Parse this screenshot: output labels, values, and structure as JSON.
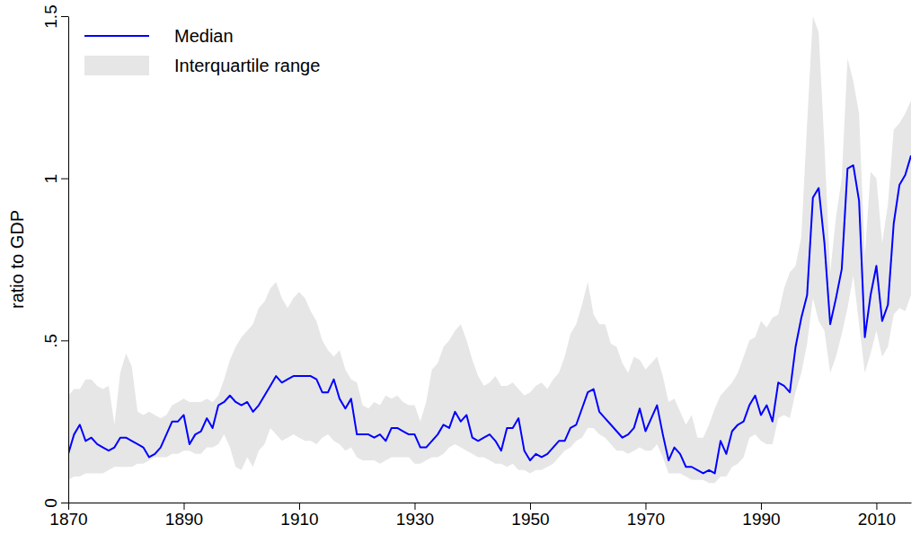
{
  "chart_data": {
    "type": "line",
    "y_label": "ratio to GDP",
    "x": [
      1870,
      1871,
      1872,
      1873,
      1874,
      1875,
      1876,
      1877,
      1878,
      1879,
      1880,
      1881,
      1882,
      1883,
      1884,
      1885,
      1886,
      1887,
      1888,
      1889,
      1890,
      1891,
      1892,
      1893,
      1894,
      1895,
      1896,
      1897,
      1898,
      1899,
      1900,
      1901,
      1902,
      1903,
      1904,
      1905,
      1906,
      1907,
      1908,
      1909,
      1910,
      1911,
      1912,
      1913,
      1914,
      1915,
      1916,
      1917,
      1918,
      1919,
      1920,
      1921,
      1922,
      1923,
      1924,
      1925,
      1926,
      1927,
      1928,
      1929,
      1930,
      1931,
      1932,
      1933,
      1934,
      1935,
      1936,
      1937,
      1938,
      1939,
      1940,
      1941,
      1942,
      1943,
      1944,
      1945,
      1946,
      1947,
      1948,
      1949,
      1950,
      1951,
      1952,
      1953,
      1954,
      1955,
      1956,
      1957,
      1958,
      1959,
      1960,
      1961,
      1962,
      1963,
      1964,
      1965,
      1966,
      1967,
      1968,
      1969,
      1970,
      1971,
      1972,
      1973,
      1974,
      1975,
      1976,
      1977,
      1978,
      1979,
      1980,
      1981,
      1982,
      1983,
      1984,
      1985,
      1986,
      1987,
      1988,
      1989,
      1990,
      1991,
      1992,
      1993,
      1994,
      1995,
      1996,
      1997,
      1998,
      1999,
      2000,
      2001,
      2002,
      2003,
      2004,
      2005,
      2006,
      2007,
      2008,
      2009,
      2010,
      2011,
      2012,
      2013,
      2014,
      2015,
      2016
    ],
    "series": [
      {
        "name": "Median",
        "type": "line",
        "color": "#0000ff",
        "values": [
          0.15,
          0.21,
          0.24,
          0.19,
          0.2,
          0.18,
          0.17,
          0.16,
          0.17,
          0.2,
          0.2,
          0.19,
          0.18,
          0.17,
          0.14,
          0.15,
          0.17,
          0.21,
          0.25,
          0.25,
          0.27,
          0.18,
          0.21,
          0.22,
          0.26,
          0.23,
          0.3,
          0.31,
          0.33,
          0.31,
          0.3,
          0.31,
          0.28,
          0.3,
          0.33,
          0.36,
          0.39,
          0.37,
          0.38,
          0.39,
          0.39,
          0.39,
          0.39,
          0.38,
          0.34,
          0.34,
          0.38,
          0.32,
          0.29,
          0.32,
          0.21,
          0.21,
          0.21,
          0.2,
          0.21,
          0.19,
          0.23,
          0.23,
          0.22,
          0.21,
          0.21,
          0.17,
          0.17,
          0.19,
          0.21,
          0.24,
          0.23,
          0.28,
          0.25,
          0.27,
          0.2,
          0.19,
          0.2,
          0.21,
          0.19,
          0.16,
          0.23,
          0.23,
          0.26,
          0.16,
          0.13,
          0.15,
          0.14,
          0.15,
          0.17,
          0.19,
          0.19,
          0.23,
          0.24,
          0.29,
          0.34,
          0.35,
          0.28,
          0.26,
          0.24,
          0.22,
          0.2,
          0.21,
          0.23,
          0.29,
          0.22,
          0.26,
          0.3,
          0.21,
          0.13,
          0.17,
          0.15,
          0.11,
          0.11,
          0.1,
          0.09,
          0.1,
          0.09,
          0.19,
          0.15,
          0.22,
          0.24,
          0.25,
          0.3,
          0.33,
          0.27,
          0.3,
          0.25,
          0.37,
          0.36,
          0.34,
          0.48,
          0.57,
          0.64,
          0.94,
          0.97,
          0.8,
          0.55,
          0.63,
          0.72,
          1.03,
          1.04,
          0.93,
          0.51,
          0.64,
          0.73,
          0.56,
          0.61,
          0.86,
          0.98,
          1.01,
          1.07
        ]
      },
      {
        "name": "Interquartile range",
        "type": "band",
        "color": "#e6e6e6",
        "lower": [
          0.07,
          0.08,
          0.08,
          0.09,
          0.09,
          0.09,
          0.09,
          0.1,
          0.11,
          0.11,
          0.11,
          0.11,
          0.12,
          0.12,
          0.13,
          0.14,
          0.14,
          0.14,
          0.15,
          0.15,
          0.16,
          0.16,
          0.15,
          0.15,
          0.17,
          0.17,
          0.18,
          0.21,
          0.17,
          0.11,
          0.1,
          0.14,
          0.11,
          0.16,
          0.18,
          0.23,
          0.21,
          0.19,
          0.2,
          0.21,
          0.2,
          0.19,
          0.19,
          0.18,
          0.2,
          0.21,
          0.19,
          0.18,
          0.16,
          0.17,
          0.14,
          0.13,
          0.13,
          0.13,
          0.12,
          0.13,
          0.14,
          0.14,
          0.14,
          0.14,
          0.12,
          0.12,
          0.13,
          0.14,
          0.14,
          0.15,
          0.17,
          0.18,
          0.17,
          0.16,
          0.15,
          0.14,
          0.14,
          0.13,
          0.12,
          0.12,
          0.11,
          0.12,
          0.1,
          0.1,
          0.09,
          0.1,
          0.1,
          0.11,
          0.12,
          0.14,
          0.16,
          0.17,
          0.19,
          0.2,
          0.23,
          0.23,
          0.21,
          0.2,
          0.18,
          0.16,
          0.16,
          0.15,
          0.16,
          0.17,
          0.16,
          0.16,
          0.18,
          0.14,
          0.09,
          0.09,
          0.09,
          0.08,
          0.07,
          0.07,
          0.07,
          0.06,
          0.06,
          0.08,
          0.08,
          0.11,
          0.12,
          0.14,
          0.2,
          0.21,
          0.19,
          0.18,
          0.18,
          0.26,
          0.27,
          0.26,
          0.34,
          0.4,
          0.49,
          0.63,
          0.56,
          0.53,
          0.4,
          0.45,
          0.52,
          0.6,
          0.7,
          0.55,
          0.4,
          0.46,
          0.53,
          0.45,
          0.48,
          0.58,
          0.6,
          0.59,
          0.64
        ],
        "upper": [
          0.33,
          0.35,
          0.35,
          0.38,
          0.38,
          0.36,
          0.35,
          0.36,
          0.24,
          0.4,
          0.46,
          0.42,
          0.28,
          0.27,
          0.28,
          0.27,
          0.26,
          0.27,
          0.3,
          0.31,
          0.32,
          0.31,
          0.31,
          0.31,
          0.32,
          0.31,
          0.33,
          0.38,
          0.44,
          0.48,
          0.51,
          0.53,
          0.55,
          0.6,
          0.62,
          0.66,
          0.68,
          0.63,
          0.6,
          0.63,
          0.65,
          0.63,
          0.59,
          0.56,
          0.5,
          0.47,
          0.45,
          0.47,
          0.41,
          0.38,
          0.37,
          0.3,
          0.29,
          0.31,
          0.3,
          0.33,
          0.32,
          0.33,
          0.31,
          0.3,
          0.3,
          0.25,
          0.31,
          0.41,
          0.43,
          0.48,
          0.5,
          0.53,
          0.55,
          0.5,
          0.44,
          0.39,
          0.36,
          0.37,
          0.39,
          0.36,
          0.36,
          0.37,
          0.35,
          0.33,
          0.34,
          0.36,
          0.37,
          0.35,
          0.38,
          0.4,
          0.45,
          0.52,
          0.55,
          0.61,
          0.68,
          0.58,
          0.55,
          0.55,
          0.49,
          0.48,
          0.43,
          0.4,
          0.45,
          0.44,
          0.41,
          0.43,
          0.45,
          0.39,
          0.31,
          0.32,
          0.28,
          0.24,
          0.27,
          0.2,
          0.2,
          0.24,
          0.29,
          0.33,
          0.35,
          0.37,
          0.4,
          0.45,
          0.5,
          0.51,
          0.56,
          0.54,
          0.57,
          0.58,
          0.66,
          0.71,
          0.73,
          0.82,
          1.17,
          1.5,
          1.45,
          1.1,
          0.71,
          0.88,
          1.0,
          1.37,
          1.3,
          1.2,
          0.76,
          1.02,
          1.0,
          0.8,
          0.92,
          1.15,
          1.17,
          1.2,
          1.24
        ]
      }
    ],
    "xlim": [
      1870,
      2016
    ],
    "xticks": [
      1870,
      1890,
      1910,
      1930,
      1950,
      1970,
      1990,
      2010
    ],
    "ylim": [
      0,
      1.5
    ],
    "yticks": [
      0,
      {
        "value": 0.5,
        "label": ".5"
      },
      1,
      1.5
    ],
    "grid": false,
    "legend": "top-left"
  }
}
